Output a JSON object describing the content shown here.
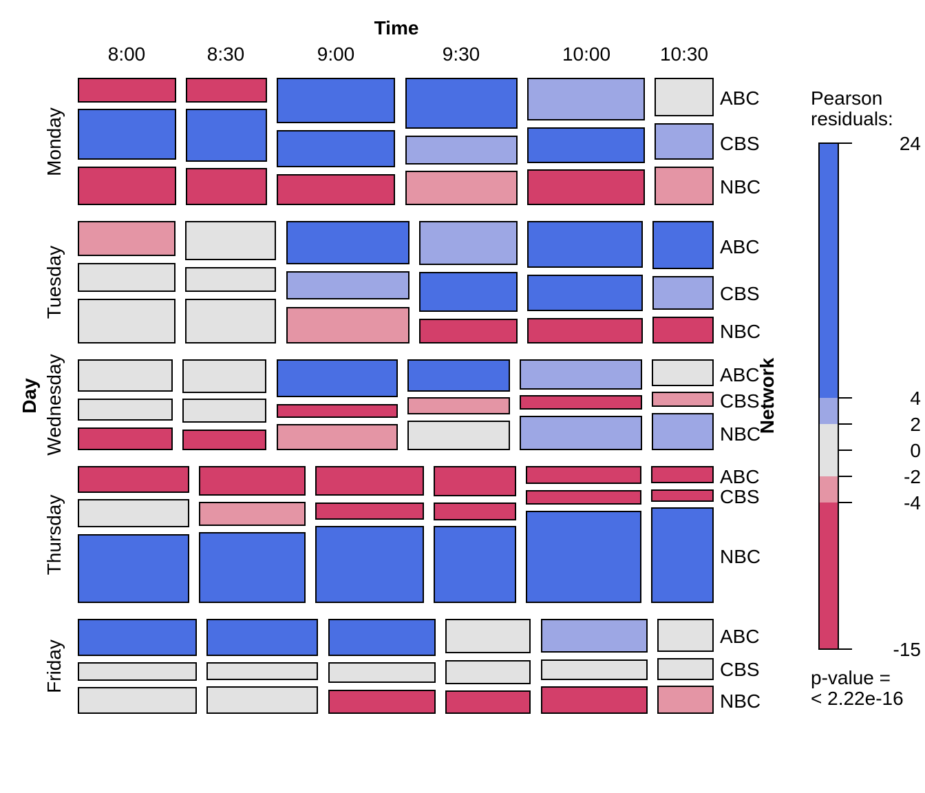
{
  "chart_data": {
    "type": "mosaic",
    "x_title": "Time",
    "y_title": "Day",
    "network_title": "Network",
    "times": [
      "8:00",
      "8:30",
      "9:00",
      "9:30",
      "10:00",
      "10:30"
    ],
    "days": [
      "Monday",
      "Tuesday",
      "Wednesday",
      "Thursday",
      "Friday"
    ],
    "networks": [
      "ABC",
      "CBS",
      "NBC"
    ],
    "residual_classes": {
      "strong_positive": "#4a6fe3",
      "positive": "#9da7e4",
      "neutral": "#e2e2e2",
      "negative": "#e495a5",
      "strong_negative": "#d33f6a"
    },
    "cells": {
      "Monday": [
        [
          "strong_negative",
          "strong_positive",
          "strong_negative"
        ],
        [
          "strong_negative",
          "strong_positive",
          "strong_negative"
        ],
        [
          "strong_positive",
          "strong_positive",
          "strong_negative"
        ],
        [
          "strong_positive",
          "positive",
          "negative"
        ],
        [
          "positive",
          "strong_positive",
          "strong_negative"
        ],
        [
          "neutral",
          "positive",
          "negative"
        ]
      ],
      "Tuesday": [
        [
          "negative",
          "neutral",
          "neutral"
        ],
        [
          "neutral",
          "neutral",
          "neutral"
        ],
        [
          "strong_positive",
          "positive",
          "negative"
        ],
        [
          "positive",
          "strong_positive",
          "strong_negative"
        ],
        [
          "strong_positive",
          "strong_positive",
          "strong_negative"
        ],
        [
          "strong_positive",
          "positive",
          "strong_negative"
        ]
      ],
      "Wednesday": [
        [
          "neutral",
          "neutral",
          "strong_negative"
        ],
        [
          "neutral",
          "neutral",
          "strong_negative"
        ],
        [
          "strong_positive",
          "strong_negative",
          "negative"
        ],
        [
          "strong_positive",
          "negative",
          "neutral"
        ],
        [
          "positive",
          "strong_negative",
          "positive"
        ],
        [
          "neutral",
          "negative",
          "positive"
        ]
      ],
      "Thursday": [
        [
          "strong_negative",
          "neutral",
          "strong_positive"
        ],
        [
          "strong_negative",
          "negative",
          "strong_positive"
        ],
        [
          "strong_negative",
          "strong_negative",
          "strong_positive"
        ],
        [
          "strong_negative",
          "strong_negative",
          "strong_positive"
        ],
        [
          "strong_negative",
          "strong_negative",
          "strong_positive"
        ],
        [
          "strong_negative",
          "strong_negative",
          "strong_positive"
        ]
      ],
      "Friday": [
        [
          "strong_positive",
          "neutral",
          "neutral"
        ],
        [
          "strong_positive",
          "neutral",
          "neutral"
        ],
        [
          "strong_positive",
          "neutral",
          "strong_negative"
        ],
        [
          "neutral",
          "neutral",
          "strong_negative"
        ],
        [
          "positive",
          "neutral",
          "strong_negative"
        ],
        [
          "neutral",
          "neutral",
          "negative"
        ]
      ]
    },
    "legend": {
      "title_line1": "Pearson",
      "title_line2": "residuals:",
      "ticks": [
        "24",
        "4",
        "2",
        "0",
        "-2",
        "-4",
        "-15"
      ],
      "tick_values": [
        24,
        4,
        2,
        0,
        -2,
        -4,
        -15
      ],
      "bands": [
        {
          "from": 4,
          "to": 24,
          "class": "strong_positive"
        },
        {
          "from": 2,
          "to": 4,
          "class": "positive"
        },
        {
          "from": -2,
          "to": 2,
          "class": "neutral"
        },
        {
          "from": -4,
          "to": -2,
          "class": "negative"
        },
        {
          "from": -15,
          "to": -4,
          "class": "strong_negative"
        }
      ],
      "pvalue_line1": "p-value =",
      "pvalue_line2": "< 2.22e-16"
    }
  }
}
